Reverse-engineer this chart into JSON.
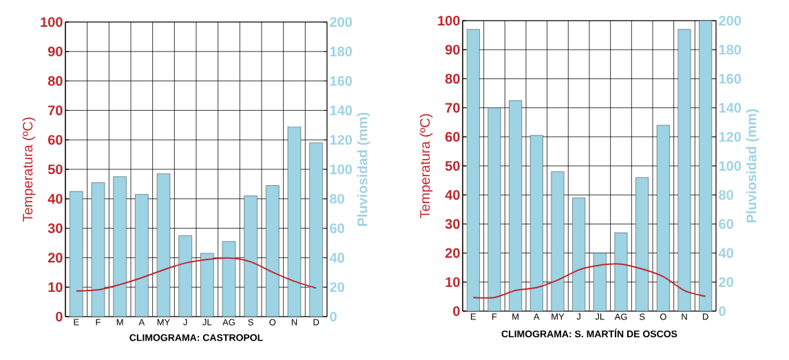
{
  "chart_data": [
    {
      "type": "bar",
      "title": "CLIMOGRAMA: CASTROPOL",
      "ylabel": "Temperatura (ºC)",
      "y2label": "Pluviosidad (mm)",
      "categories": [
        "E",
        "F",
        "M",
        "A",
        "MY",
        "J",
        "JL",
        "AG",
        "S",
        "O",
        "N",
        "D"
      ],
      "series": [
        {
          "type": "bar",
          "axis": "y2",
          "color": "#9dd3e3",
          "values": [
            85,
            91,
            95,
            83,
            97,
            55,
            43,
            51,
            82,
            89,
            129,
            118
          ]
        },
        {
          "type": "line",
          "axis": "y",
          "color": "#c0272d",
          "line_style": "solid",
          "values": [
            8.7,
            9.1,
            10.9,
            13.2,
            15.9,
            18.2,
            19.4,
            19.9,
            18.6,
            15.1,
            12.0,
            9.7
          ]
        }
      ],
      "ylim": [
        0,
        100
      ],
      "yticks": [
        0,
        10,
        20,
        30,
        40,
        50,
        60,
        70,
        80,
        90,
        100
      ],
      "y2lim": [
        0,
        200
      ],
      "y2ticks": [
        0,
        20,
        40,
        60,
        80,
        100,
        120,
        140,
        160,
        180,
        200
      ],
      "grid": true
    },
    {
      "type": "bar",
      "title": "CLIMOGRAMA: S. MARTÍN DE OSCOS",
      "ylabel": "Temperatura (ºC)",
      "y2label": "Pluviosidad (mm)",
      "categories": [
        "E",
        "F",
        "M",
        "A",
        "MY",
        "J",
        "JL",
        "AG",
        "S",
        "O",
        "N",
        "D"
      ],
      "series": [
        {
          "type": "bar",
          "axis": "y2",
          "color": "#9dd3e3",
          "values": [
            194,
            140,
            145,
            121,
            96,
            78,
            40,
            54,
            92,
            128,
            194,
            200
          ]
        },
        {
          "type": "line",
          "axis": "y",
          "color": "#c0272d",
          "line_style": "solid",
          "values": [
            4.7,
            4.7,
            7.1,
            8.1,
            10.7,
            14.2,
            15.8,
            16.2,
            14.5,
            11.9,
            7.1,
            5.1
          ]
        }
      ],
      "ylim": [
        0,
        100
      ],
      "yticks": [
        0,
        10,
        20,
        30,
        40,
        50,
        60,
        70,
        80,
        90,
        100
      ],
      "y2lim": [
        0,
        200
      ],
      "y2ticks": [
        0,
        20,
        40,
        60,
        80,
        100,
        120,
        140,
        160,
        180,
        200
      ],
      "grid": true
    }
  ]
}
